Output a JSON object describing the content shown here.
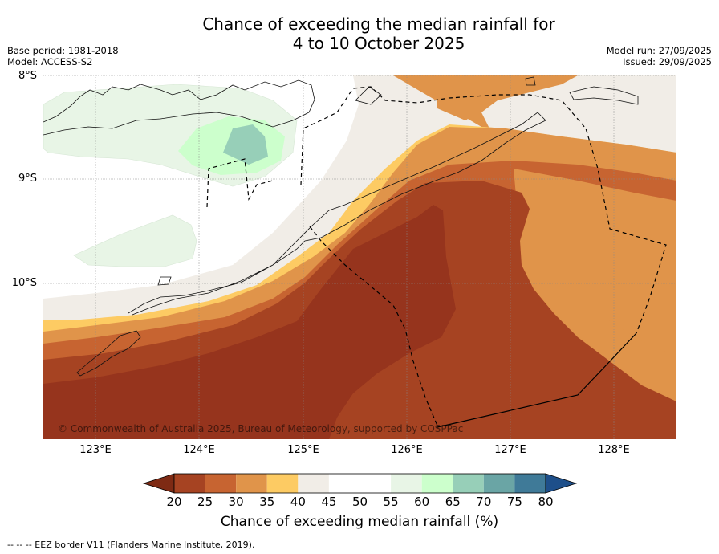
{
  "title_line1": "Chance of exceeding the median rainfall for",
  "title_line2": "4 to 10 October 2025",
  "base_period": "Base period: 1981-2018",
  "model": "Model: ACCESS-S2",
  "model_run": "Model run: 27/09/2025",
  "issued": "Issued: 29/09/2025",
  "copyright": "© Commonwealth of Australia 2025, Bureau of Meteorology, supported by COSPPac",
  "lat_labels": [
    "8°S",
    "9°S",
    "10°S"
  ],
  "lon_labels": [
    "123°E",
    "124°E",
    "125°E",
    "126°E",
    "127°E",
    "128°E"
  ],
  "colorbar": {
    "ticks": [
      "20",
      "25",
      "30",
      "35",
      "40",
      "45",
      "50",
      "55",
      "60",
      "65",
      "70",
      "75",
      "80"
    ],
    "colors": [
      "#7e2a14",
      "#a64322",
      "#c76431",
      "#e0944a",
      "#fdcb63",
      "#f1ede7",
      "#ffffff",
      "#ffffff",
      "#e8f5e6",
      "#ccffcc",
      "#97cfb8",
      "#6aa5a5",
      "#3f7a98",
      "#1e4f8a"
    ],
    "label": "Chance of exceeding median rainfall (%)"
  },
  "footnote": "--  --  -- EEZ border V11 (Flanders Marine Institute, 2019)."
}
